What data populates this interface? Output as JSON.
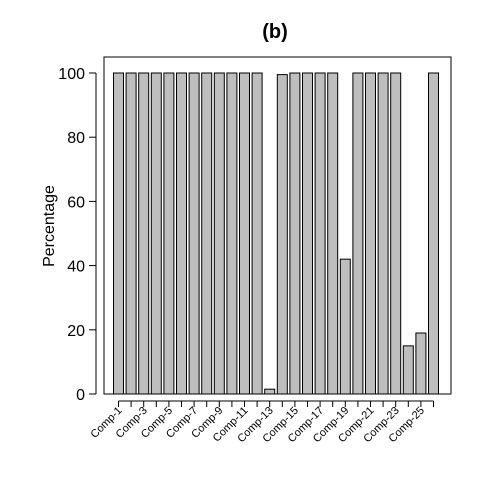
{
  "chart_data": {
    "type": "bar",
    "title": "(b)",
    "xlabel": "",
    "ylabel": "Percentage",
    "ylim": [
      0,
      100
    ],
    "yticks": [
      0,
      20,
      40,
      60,
      80,
      100
    ],
    "bar_color": "#bebebe",
    "categories": [
      "Comp-1",
      "Comp-2",
      "Comp-3",
      "Comp-4",
      "Comp-5",
      "Comp-6",
      "Comp-7",
      "Comp-8",
      "Comp-9",
      "Comp-10",
      "Comp-11",
      "Comp-12",
      "Comp-13",
      "Comp-14",
      "Comp-15",
      "Comp-16",
      "Comp-17",
      "Comp-18",
      "Comp-19",
      "Comp-20",
      "Comp-21",
      "Comp-22",
      "Comp-23",
      "Comp-24",
      "Comp-25",
      "Comp-26"
    ],
    "values": [
      100,
      100,
      100,
      100,
      100,
      100,
      100,
      100,
      100,
      100,
      100,
      100,
      1.5,
      99.5,
      100,
      100,
      100,
      100,
      42,
      100,
      100,
      100,
      100,
      15,
      19,
      100
    ],
    "labeled_categories": [
      "Comp-1",
      "Comp-3",
      "Comp-5",
      "Comp-7",
      "Comp-9",
      "Comp-11",
      "Comp-13",
      "Comp-15",
      "Comp-17",
      "Comp-19",
      "Comp-21",
      "Comp-23",
      "Comp-25"
    ]
  }
}
